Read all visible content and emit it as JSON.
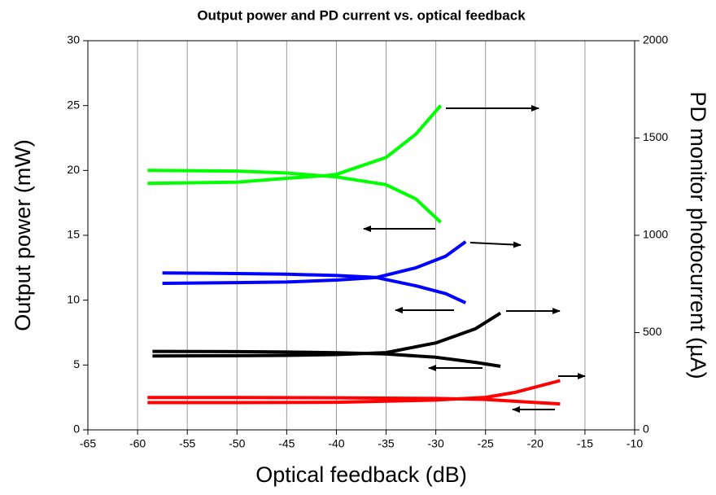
{
  "chart_data": {
    "type": "line",
    "title": "Output power and PD current vs. optical feedback",
    "xlabel": "Optical feedback (dB)",
    "ylabel": "Output power (mW)",
    "y2label": "PD monitor photocurrent (µA)",
    "xlim": [
      -65,
      -10
    ],
    "xticks": [
      -65,
      -60,
      -55,
      -50,
      -45,
      -40,
      -35,
      -30,
      -25,
      -20,
      -15,
      -10
    ],
    "ylim": [
      0,
      30
    ],
    "yticks": [
      0,
      5,
      10,
      15,
      20,
      25,
      30
    ],
    "y2lim": [
      0,
      2000
    ],
    "y2ticks": [
      0,
      500,
      1000,
      1500,
      2000
    ],
    "grid": "x",
    "series": [
      {
        "color": "#00ff00",
        "axis": "y",
        "x": [
          -59,
          -50,
          -45,
          -40,
          -35,
          -32,
          -29.5
        ],
        "values": [
          20,
          19.95,
          19.8,
          19.5,
          18.9,
          17.8,
          16.0
        ]
      },
      {
        "color": "#00ff00",
        "axis": "y2",
        "x": [
          -59,
          -50,
          -45,
          -41,
          -40,
          -35,
          -32,
          -29.5
        ],
        "values": [
          1267,
          1273,
          1293,
          1307,
          1313,
          1400,
          1520,
          1667
        ]
      },
      {
        "color": "#0000ff",
        "axis": "y",
        "x": [
          -57.5,
          -50,
          -45,
          -40,
          -36,
          -32,
          -29,
          -27
        ],
        "values": [
          12.1,
          12.05,
          12.0,
          11.9,
          11.75,
          11.1,
          10.5,
          9.8
        ]
      },
      {
        "color": "#0000ff",
        "axis": "y2",
        "x": [
          -57.5,
          -50,
          -45,
          -40,
          -36,
          -32,
          -29,
          -27
        ],
        "values": [
          753,
          757,
          760,
          770,
          783,
          833,
          893,
          967
        ]
      },
      {
        "color": "#000000",
        "axis": "y",
        "x": [
          -58.5,
          -50,
          -45,
          -40,
          -35,
          -30,
          -26,
          -23.5
        ],
        "values": [
          6.05,
          6.03,
          6.0,
          5.95,
          5.85,
          5.6,
          5.2,
          4.9
        ]
      },
      {
        "color": "#000000",
        "axis": "y2",
        "x": [
          -58.5,
          -50,
          -45,
          -40,
          -35,
          -30,
          -26,
          -23.5
        ],
        "values": [
          380,
          381,
          383,
          387,
          397,
          447,
          520,
          600
        ]
      },
      {
        "color": "#ff0000",
        "axis": "y",
        "x": [
          -59,
          -50,
          -40,
          -30,
          -25,
          -22,
          -17.5
        ],
        "values": [
          2.5,
          2.5,
          2.47,
          2.42,
          2.35,
          2.2,
          2.0
        ]
      },
      {
        "color": "#ff0000",
        "axis": "y2",
        "x": [
          -59,
          -50,
          -40,
          -30,
          -25,
          -22,
          -17.5
        ],
        "values": [
          140,
          140,
          142,
          153,
          167,
          193,
          253
        ]
      }
    ]
  }
}
